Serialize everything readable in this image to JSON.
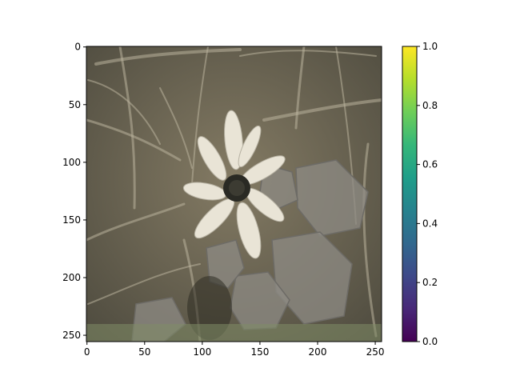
{
  "chart_data": {
    "type": "image",
    "title": "",
    "xlabel": "",
    "ylabel": "",
    "image_size": [
      256,
      256
    ],
    "xlim": [
      0,
      255
    ],
    "ylim": [
      255,
      0
    ],
    "x_ticks": [
      0,
      50,
      100,
      150,
      200,
      250
    ],
    "y_ticks": [
      0,
      50,
      100,
      150,
      200,
      250
    ],
    "image_content": "photograph of a white daisy-like flower with a dark center among dry grass and grey rocks, desaturated sepia tones",
    "colorbar": {
      "colormap": "viridis",
      "range": [
        0.0,
        1.0
      ],
      "ticks": [
        "0.0",
        "0.2",
        "0.4",
        "0.6",
        "0.8",
        "1.0"
      ]
    },
    "colors": {
      "viridis": [
        "#440154",
        "#482878",
        "#3e4989",
        "#31688e",
        "#26828e",
        "#1f9e89",
        "#35b779",
        "#6ece58",
        "#b5de2b",
        "#fde725"
      ],
      "photo_background": "#6b6452",
      "petal": "#e9e4d6",
      "flower_center": "#2a2a24",
      "rock": "#8d8b84"
    }
  }
}
